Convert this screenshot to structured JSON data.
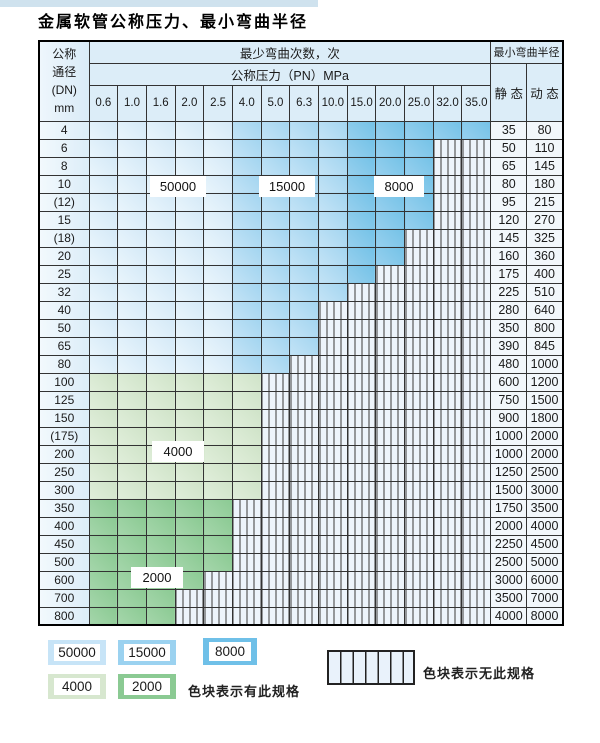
{
  "title": "金属软管公称压力、最小弯曲半径",
  "table": {
    "dn_header_lines": [
      "公称",
      "通径",
      "(DN)",
      "mm"
    ],
    "bend_cycles_header": "最少弯曲次数，次",
    "pressure_header": "公称压力（PN）MPa",
    "bend_radius_header": "最小弯曲半径",
    "static_header": "静 态",
    "dynamic_header": "动 态",
    "pressure_columns": [
      "0.6",
      "1.0",
      "1.6",
      "2.0",
      "2.5",
      "4.0",
      "5.0",
      "6.3",
      "10.0",
      "15.0",
      "20.0",
      "25.0",
      "32.0",
      "35.0"
    ],
    "rows": [
      {
        "dn": "4",
        "zone": "b",
        "last_col": 13,
        "static": "35",
        "dynamic": "80"
      },
      {
        "dn": "6",
        "zone": "b",
        "last_col": 11,
        "static": "50",
        "dynamic": "110"
      },
      {
        "dn": "8",
        "zone": "b",
        "last_col": 11,
        "static": "65",
        "dynamic": "145"
      },
      {
        "dn": "10",
        "zone": "b",
        "last_col": 11,
        "static": "80",
        "dynamic": "180"
      },
      {
        "dn": "(12)",
        "zone": "b",
        "last_col": 11,
        "static": "95",
        "dynamic": "215"
      },
      {
        "dn": "15",
        "zone": "b",
        "last_col": 11,
        "static": "120",
        "dynamic": "270"
      },
      {
        "dn": "(18)",
        "zone": "b",
        "last_col": 10,
        "static": "145",
        "dynamic": "325"
      },
      {
        "dn": "20",
        "zone": "b",
        "last_col": 10,
        "static": "160",
        "dynamic": "360"
      },
      {
        "dn": "25",
        "zone": "b",
        "last_col": 9,
        "static": "175",
        "dynamic": "400"
      },
      {
        "dn": "32",
        "zone": "b",
        "last_col": 8,
        "static": "225",
        "dynamic": "510"
      },
      {
        "dn": "40",
        "zone": "b",
        "last_col": 7,
        "static": "280",
        "dynamic": "640"
      },
      {
        "dn": "50",
        "zone": "b",
        "last_col": 7,
        "static": "350",
        "dynamic": "800"
      },
      {
        "dn": "65",
        "zone": "b",
        "last_col": 7,
        "static": "390",
        "dynamic": "845"
      },
      {
        "dn": "80",
        "zone": "b",
        "last_col": 6,
        "static": "480",
        "dynamic": "1000"
      },
      {
        "dn": "100",
        "zone": "g1",
        "last_col": 5,
        "static": "600",
        "dynamic": "1200"
      },
      {
        "dn": "125",
        "zone": "g1",
        "last_col": 5,
        "static": "750",
        "dynamic": "1500"
      },
      {
        "dn": "150",
        "zone": "g1",
        "last_col": 5,
        "static": "900",
        "dynamic": "1800"
      },
      {
        "dn": "(175)",
        "zone": "g1",
        "last_col": 5,
        "static": "1000",
        "dynamic": "2000"
      },
      {
        "dn": "200",
        "zone": "g1",
        "last_col": 5,
        "static": "1000",
        "dynamic": "2000"
      },
      {
        "dn": "250",
        "zone": "g1",
        "last_col": 5,
        "static": "1250",
        "dynamic": "2500"
      },
      {
        "dn": "300",
        "zone": "g1",
        "last_col": 5,
        "static": "1500",
        "dynamic": "3000"
      },
      {
        "dn": "350",
        "zone": "g2",
        "last_col": 4,
        "static": "1750",
        "dynamic": "3500"
      },
      {
        "dn": "400",
        "zone": "g2",
        "last_col": 4,
        "static": "2000",
        "dynamic": "4000"
      },
      {
        "dn": "450",
        "zone": "g2",
        "last_col": 4,
        "static": "2250",
        "dynamic": "4500"
      },
      {
        "dn": "500",
        "zone": "g2",
        "last_col": 4,
        "static": "2500",
        "dynamic": "5000"
      },
      {
        "dn": "600",
        "zone": "g2",
        "last_col": 3,
        "static": "3000",
        "dynamic": "6000"
      },
      {
        "dn": "700",
        "zone": "g2",
        "last_col": 2,
        "static": "3500",
        "dynamic": "7000"
      },
      {
        "dn": "800",
        "zone": "g2",
        "last_col": 2,
        "static": "4000",
        "dynamic": "8000"
      }
    ]
  },
  "zone_labels": [
    {
      "text": "50000"
    },
    {
      "text": "15000"
    },
    {
      "text": "8000"
    },
    {
      "text": "4000"
    },
    {
      "text": "2000"
    }
  ],
  "legend": {
    "swatches": [
      {
        "label": "50000",
        "color": "#c7e4f7"
      },
      {
        "label": "15000",
        "color": "#9bd2f0"
      },
      {
        "label": "8000",
        "color": "#6fc0e8"
      },
      {
        "label": "4000",
        "color": "#d7e7cf"
      },
      {
        "label": "2000",
        "color": "#8bca93"
      }
    ],
    "available_text": "色块表示有此规格",
    "unavailable_text": "色块表示无此规格"
  },
  "colors": {
    "blue_light": "#d4e9f7",
    "blue_medium": "#a3d5f0",
    "blue_dark": "#74c2e7",
    "green_light": "#cfe3c8",
    "green_dark": "#8bca93",
    "hatch_bg": "#edf4fb",
    "grid": "#333333",
    "header_bg": "#dcedf8"
  }
}
